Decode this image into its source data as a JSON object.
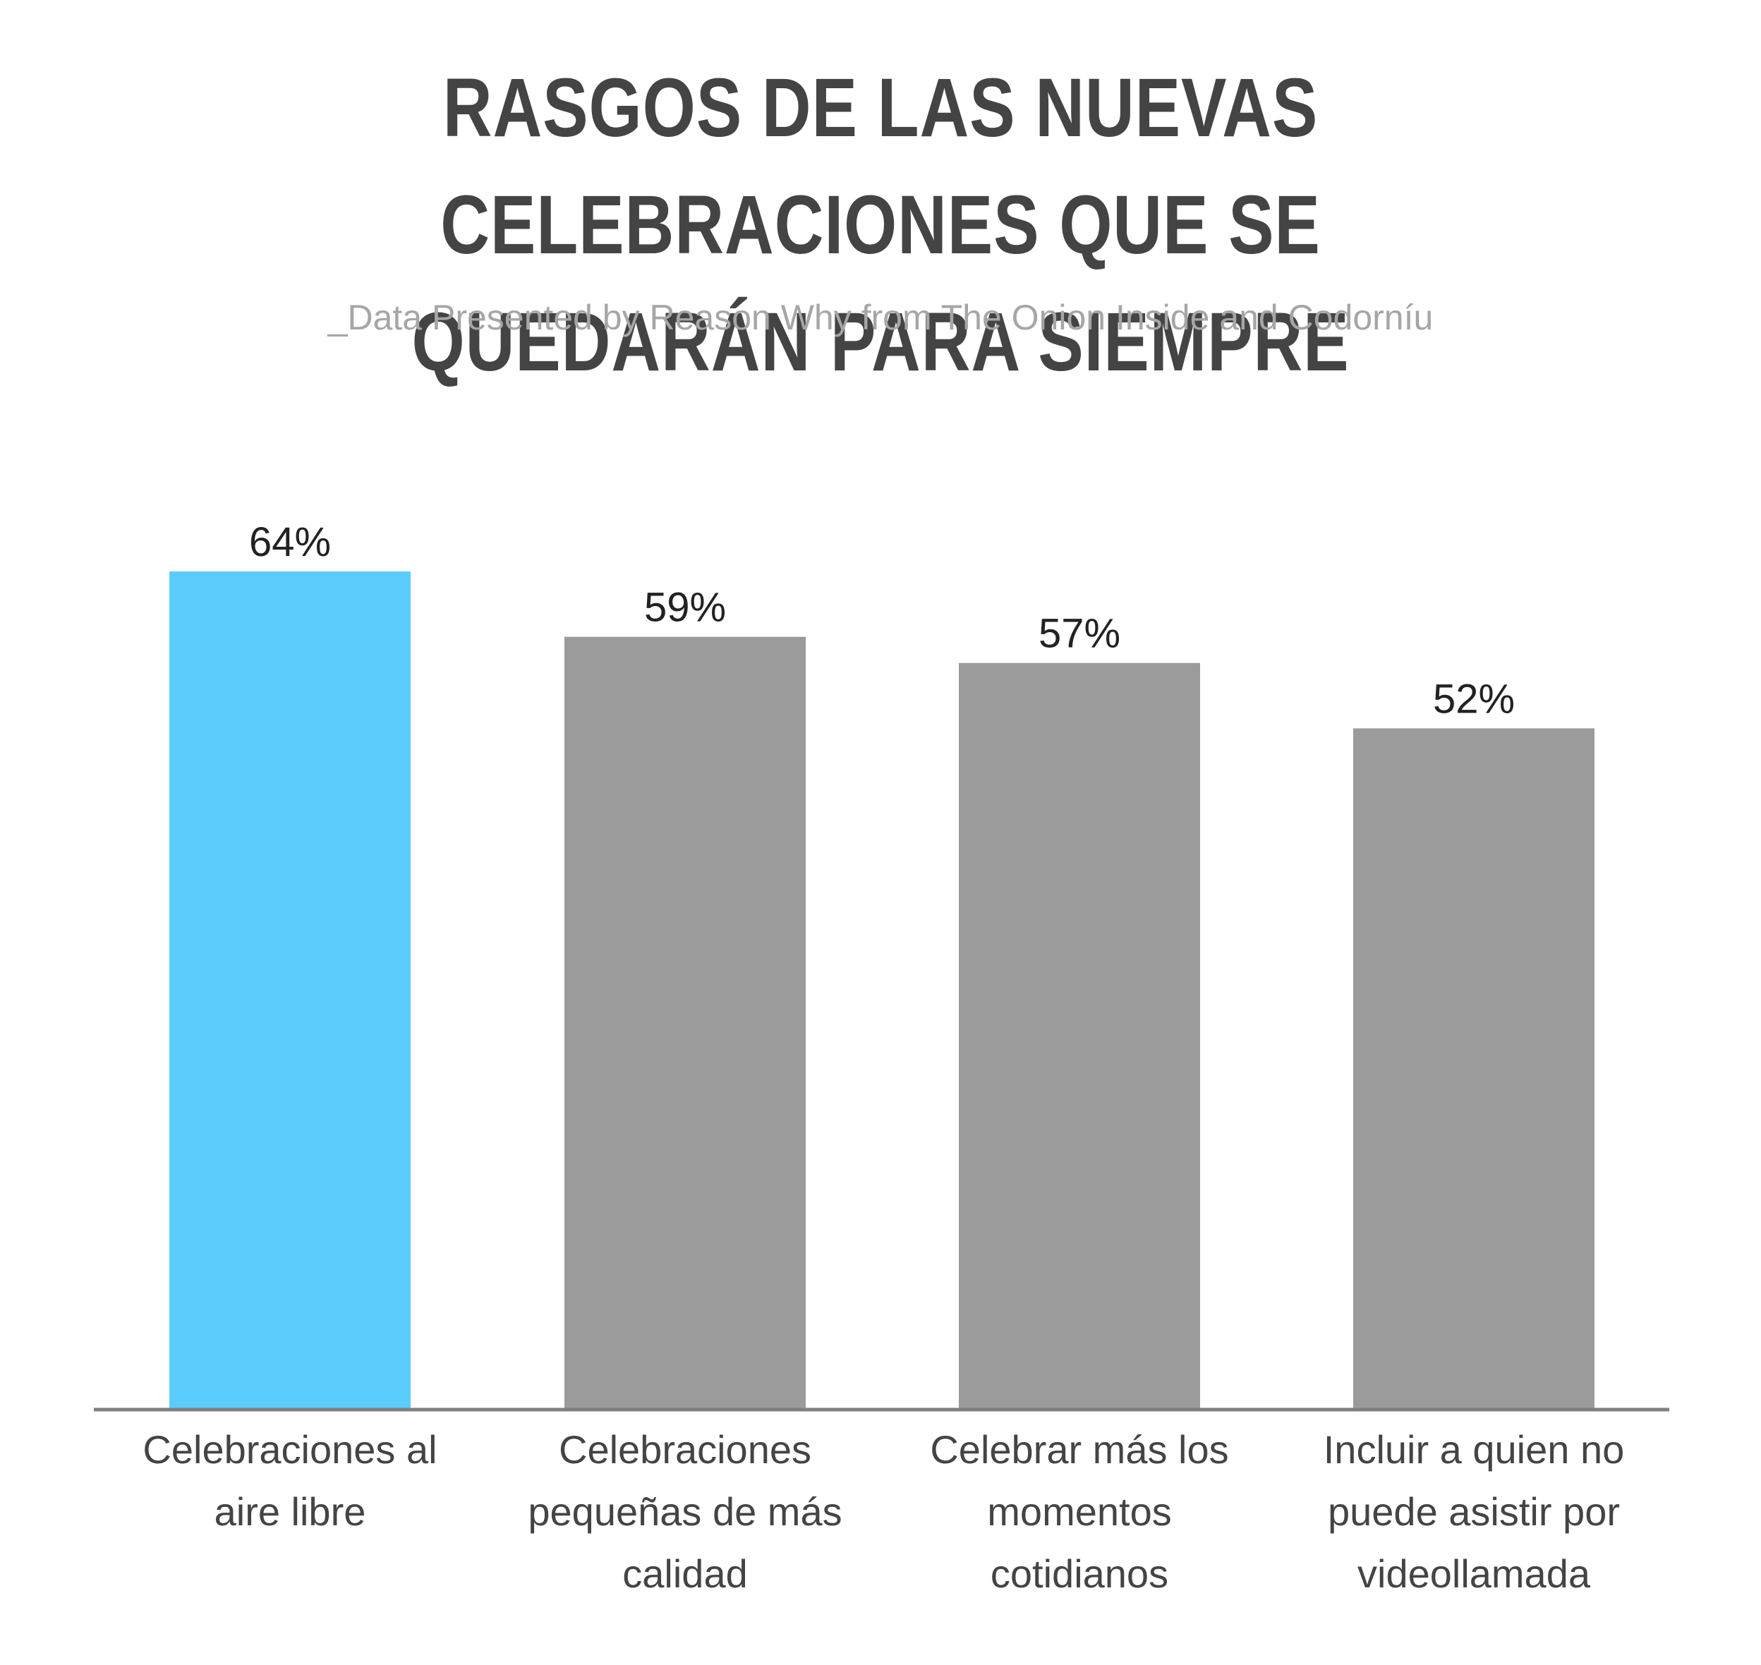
{
  "chart_data": {
    "type": "bar",
    "title_lines": [
      "RASGOS DE LAS NUEVAS CELEBRACIONES QUE SE",
      "QUEDARÁN PARA SIEMPRE"
    ],
    "subtitle": "_Data Presented by Reason Why from The Onion Inside and Codorníu",
    "categories": [
      [
        "Celebraciones al",
        "aire libre"
      ],
      [
        "Celebraciones",
        "pequeñas de más",
        "calidad"
      ],
      [
        "Celebrar más los",
        "momentos",
        "cotidianos"
      ],
      [
        "Incluir a quien no",
        "puede asistir por",
        "videollamada"
      ]
    ],
    "values": [
      64,
      59,
      57,
      52
    ],
    "value_labels": [
      "64%",
      "59%",
      "57%",
      "52%"
    ],
    "ylim": [
      0,
      100
    ],
    "grid": false,
    "highlight_color": "#5bcdfc",
    "bar_color": "#9b9b9b",
    "axis_color": "#7f7f7f"
  }
}
